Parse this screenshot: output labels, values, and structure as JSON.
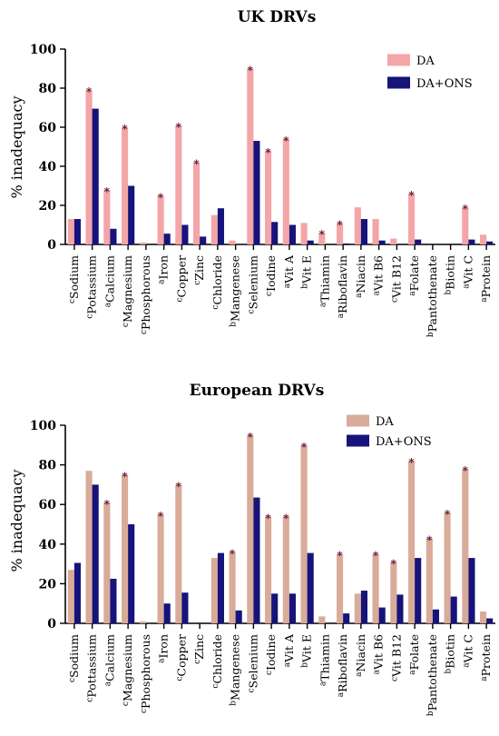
{
  "colors": {
    "da_light": "#f4a5a8",
    "da_tan": "#d9ab99",
    "da_ons": "#16137a",
    "asterisk": "#6b1f3a",
    "axis": "#000000"
  },
  "chart_data": [
    {
      "type": "bar",
      "title": "UK DRVs",
      "ylabel": "% inadequacy",
      "ylim": [
        0,
        100
      ],
      "yticks": [
        "0",
        "20",
        "40",
        "60",
        "80",
        "100"
      ],
      "legend_position": "top-right",
      "categories": [
        {
          "sup": "c",
          "name": "Sodium"
        },
        {
          "sup": "c",
          "name": "Potassium"
        },
        {
          "sup": "a",
          "name": "Calcium"
        },
        {
          "sup": "c",
          "name": "Magnesium"
        },
        {
          "sup": "c",
          "name": "Phosphorous"
        },
        {
          "sup": "a",
          "name": "Iron"
        },
        {
          "sup": "c",
          "name": "Copper"
        },
        {
          "sup": "c",
          "name": "Zinc"
        },
        {
          "sup": "c",
          "name": "Chloride"
        },
        {
          "sup": "b",
          "name": "Mangenese"
        },
        {
          "sup": "c",
          "name": "Selenium"
        },
        {
          "sup": "c",
          "name": "Iodine"
        },
        {
          "sup": "a",
          "name": "Vit A"
        },
        {
          "sup": "b",
          "name": "Vit E"
        },
        {
          "sup": "a",
          "name": "Thiamin"
        },
        {
          "sup": "a",
          "name": "Riboflavin"
        },
        {
          "sup": "a",
          "name": "Niacin"
        },
        {
          "sup": "a",
          "name": "Vit B6"
        },
        {
          "sup": "c",
          "name": "Vit B12"
        },
        {
          "sup": "a",
          "name": "Folate"
        },
        {
          "sup": "b",
          "name": "Pantothenate"
        },
        {
          "sup": "b",
          "name": "Biotin"
        },
        {
          "sup": "a",
          "name": "Vit C"
        },
        {
          "sup": "a",
          "name": "Protein"
        }
      ],
      "series": [
        {
          "name": "DA",
          "values": [
            13,
            79,
            28,
            60,
            1,
            25,
            61,
            42,
            15,
            2,
            90,
            48,
            54,
            11,
            6,
            11,
            19,
            13,
            3,
            26,
            0,
            0,
            19,
            5
          ]
        },
        {
          "name": "DA+ONS",
          "values": [
            13,
            69.5,
            8,
            30,
            0,
            5.5,
            10,
            4,
            18.5,
            0,
            53,
            11.5,
            10,
            2,
            0,
            0.5,
            13,
            2,
            0,
            2.5,
            0,
            0,
            2.5,
            1.5
          ]
        }
      ],
      "asterisks": [
        false,
        true,
        true,
        true,
        false,
        true,
        true,
        true,
        false,
        false,
        true,
        true,
        true,
        false,
        true,
        true,
        false,
        false,
        false,
        true,
        false,
        false,
        true,
        false
      ]
    },
    {
      "type": "bar",
      "title": "European DRVs",
      "ylabel": "% inadequacy",
      "ylim": [
        0,
        100
      ],
      "yticks": [
        "0",
        "20",
        "40",
        "60",
        "80",
        "100"
      ],
      "legend_position": "top-right",
      "categories": [
        {
          "sup": "c",
          "name": "Sodium"
        },
        {
          "sup": "c",
          "name": "Pottassium"
        },
        {
          "sup": "a",
          "name": "Calcium"
        },
        {
          "sup": "c",
          "name": "Magnesium"
        },
        {
          "sup": "c",
          "name": "Phosphorous"
        },
        {
          "sup": "a",
          "name": "Iron"
        },
        {
          "sup": "c",
          "name": "Copper"
        },
        {
          "sup": "c",
          "name": "Zinc"
        },
        {
          "sup": "c",
          "name": "Chloride"
        },
        {
          "sup": "b",
          "name": "Mangenese"
        },
        {
          "sup": "c",
          "name": "Selenium"
        },
        {
          "sup": "c",
          "name": "Iodine"
        },
        {
          "sup": "a",
          "name": "Vit A"
        },
        {
          "sup": "b",
          "name": "Vit E"
        },
        {
          "sup": "a",
          "name": "Thiamin"
        },
        {
          "sup": "a",
          "name": "Riboflavin"
        },
        {
          "sup": "a",
          "name": "Niacin"
        },
        {
          "sup": "a",
          "name": "Vit B6"
        },
        {
          "sup": "c",
          "name": "Vit B12"
        },
        {
          "sup": "a",
          "name": "Folate"
        },
        {
          "sup": "b",
          "name": "Pantothenate"
        },
        {
          "sup": "b",
          "name": "Biotin"
        },
        {
          "sup": "a",
          "name": "Vit C"
        },
        {
          "sup": "a",
          "name": "Protein"
        }
      ],
      "series": [
        {
          "name": "DA",
          "values": [
            27,
            77,
            61,
            75,
            1,
            55,
            70,
            0,
            33,
            36,
            95,
            54,
            54,
            90,
            3.5,
            35,
            15,
            35,
            31,
            82,
            43,
            56,
            78,
            6
          ]
        },
        {
          "name": "DA+ONS",
          "values": [
            30.5,
            70,
            22.5,
            50,
            0,
            10,
            15.5,
            0,
            35.5,
            6.5,
            63.5,
            15,
            15,
            35.5,
            0,
            5,
            16.5,
            8,
            14.5,
            33,
            7,
            13.5,
            33,
            2.5
          ]
        }
      ],
      "asterisks": [
        false,
        false,
        true,
        true,
        false,
        true,
        true,
        false,
        false,
        true,
        true,
        true,
        true,
        true,
        false,
        true,
        false,
        true,
        true,
        true,
        true,
        true,
        true,
        false
      ]
    }
  ]
}
